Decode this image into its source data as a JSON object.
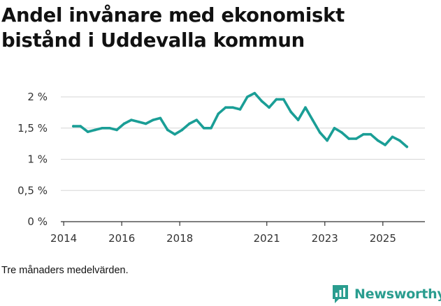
{
  "title": {
    "line1": "Andel invånare med ekonomiskt",
    "line2": "bistånd i Uddevalla kommun"
  },
  "chart_data": {
    "type": "line",
    "title": "Andel invånare med ekonomiskt bistånd i Uddevalla kommun",
    "xlabel": "",
    "ylabel": "",
    "ylim": [
      0,
      2
    ],
    "xlim": [
      2014,
      2026.5
    ],
    "grid": "horizontal",
    "x_ticks": [
      {
        "value": 2014,
        "label": "2014"
      },
      {
        "value": 2016,
        "label": "2016"
      },
      {
        "value": 2018,
        "label": "2018"
      },
      {
        "value": 2021,
        "label": "2021"
      },
      {
        "value": 2023,
        "label": "2023"
      },
      {
        "value": 2025,
        "label": "2025"
      }
    ],
    "y_ticks": [
      {
        "value": 0,
        "label": "0 %"
      },
      {
        "value": 0.5,
        "label": "0,5 %"
      },
      {
        "value": 1,
        "label": "1 %"
      },
      {
        "value": 1.5,
        "label": "1,5 %"
      },
      {
        "value": 2,
        "label": "2 %"
      }
    ],
    "series": [
      {
        "name": "Andel invånare med ekonomiskt bistånd",
        "color": "#1a9e96",
        "x": [
          2014.33,
          2014.58,
          2014.83,
          2015.08,
          2015.33,
          2015.58,
          2015.83,
          2016.08,
          2016.33,
          2016.58,
          2016.83,
          2017.08,
          2017.33,
          2017.58,
          2017.83,
          2018.08,
          2018.33,
          2018.58,
          2018.83,
          2019.08,
          2019.33,
          2019.58,
          2019.83,
          2020.08,
          2020.33,
          2020.58,
          2020.83,
          2021.08,
          2021.33,
          2021.58,
          2021.83,
          2022.08,
          2022.33,
          2022.58,
          2022.83,
          2023.08,
          2023.33,
          2023.58,
          2023.83,
          2024.08,
          2024.33,
          2024.58,
          2024.83,
          2025.08,
          2025.33,
          2025.58,
          2025.83
        ],
        "values": [
          1.53,
          1.53,
          1.44,
          1.47,
          1.5,
          1.5,
          1.47,
          1.57,
          1.63,
          1.6,
          1.57,
          1.63,
          1.66,
          1.47,
          1.4,
          1.47,
          1.57,
          1.63,
          1.5,
          1.5,
          1.73,
          1.83,
          1.83,
          1.8,
          2.0,
          2.06,
          1.93,
          1.83,
          1.96,
          1.96,
          1.76,
          1.63,
          1.83,
          1.63,
          1.43,
          1.3,
          1.5,
          1.43,
          1.33,
          1.33,
          1.4,
          1.4,
          1.3,
          1.23,
          1.36,
          1.3,
          1.2
        ]
      }
    ]
  },
  "note": "Tre månaders medelvärden.",
  "brand": {
    "name": "Newsworthy",
    "icon": "bar-chart-logo",
    "color": "#2a9d8f"
  }
}
